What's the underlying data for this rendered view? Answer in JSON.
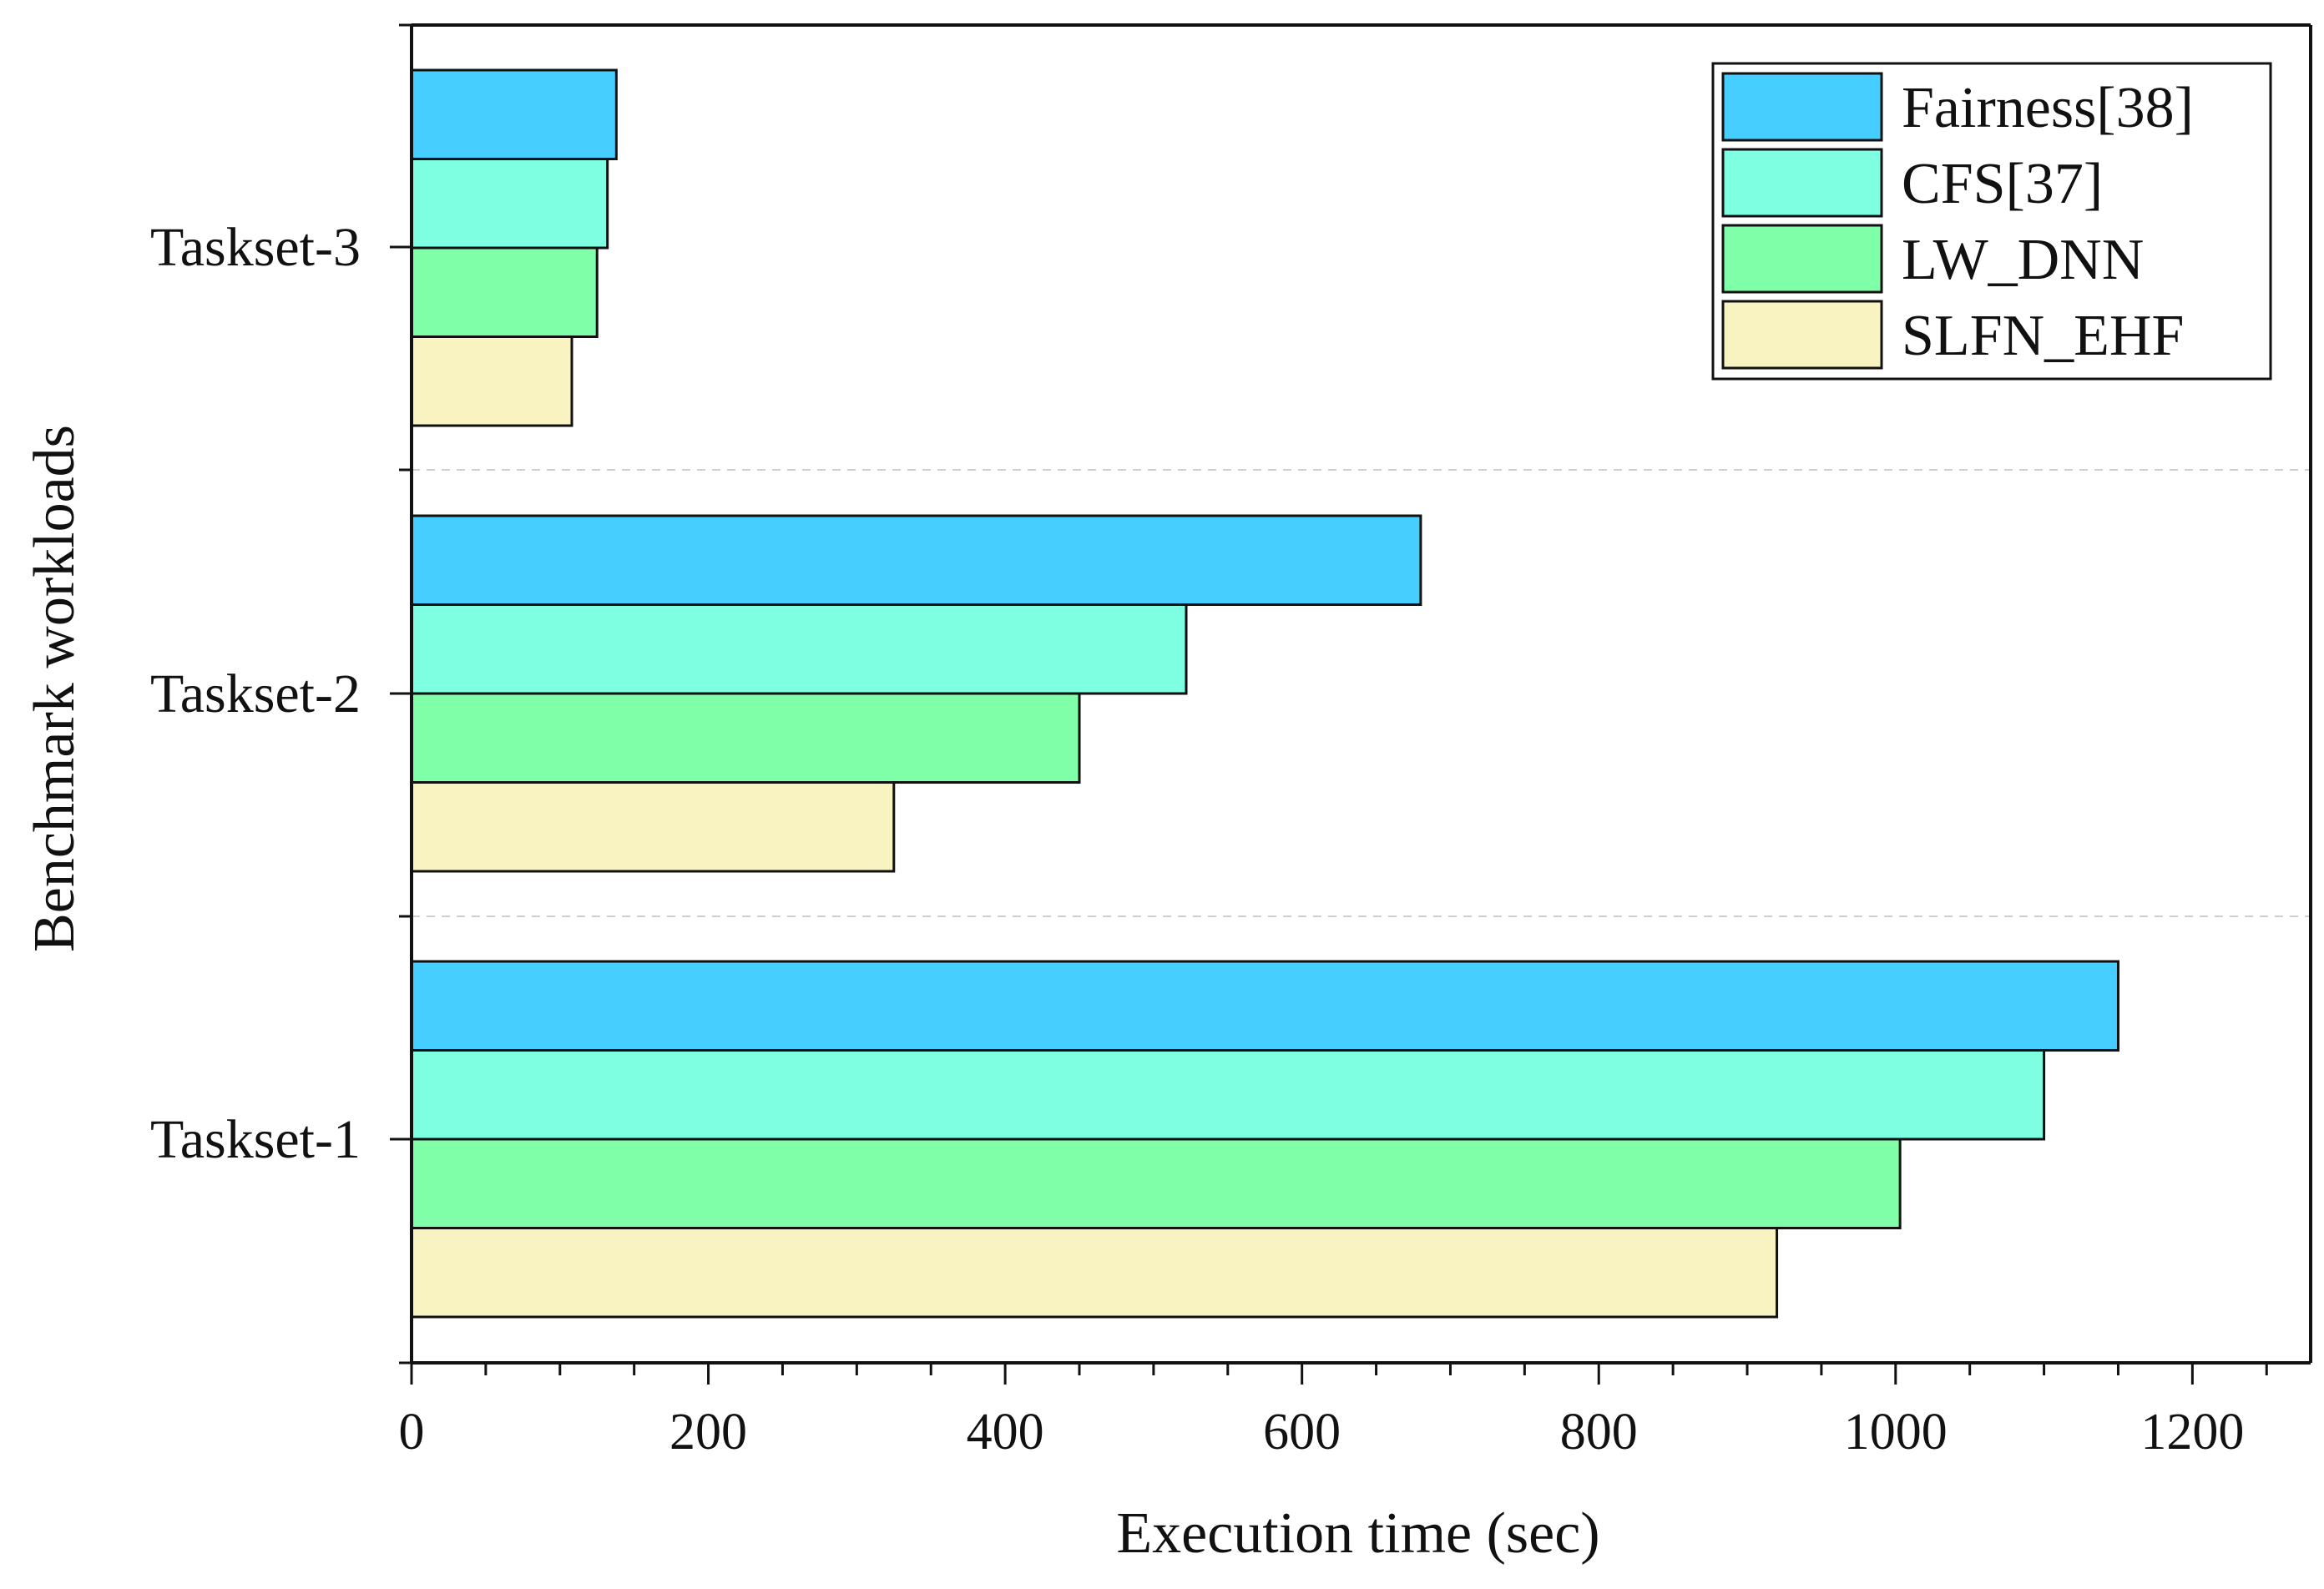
{
  "chart_data": {
    "type": "bar",
    "orientation": "horizontal",
    "title": "",
    "xlabel": "Execution time (sec)",
    "ylabel": "Benchmark workloads",
    "xlim": [
      0,
      1280
    ],
    "x_ticks": [
      0,
      200,
      400,
      600,
      800,
      1000,
      1200
    ],
    "categories": [
      "Taskset-1",
      "Taskset-2",
      "Taskset-3"
    ],
    "series": [
      {
        "name": "Fairness[38]",
        "color": "#45CEFF",
        "values": [
          1150,
          680,
          138
        ]
      },
      {
        "name": "CFS[37]",
        "color": "#7FFFE2",
        "values": [
          1100,
          522,
          132
        ]
      },
      {
        "name": "LW_DNN",
        "color": "#7FFFA8",
        "values": [
          1003,
          450,
          125
        ]
      },
      {
        "name": "SLFN_EHF",
        "color": "#F8F3C0",
        "values": [
          920,
          325,
          108
        ]
      }
    ],
    "legend_position": "top-right",
    "grid": false
  }
}
